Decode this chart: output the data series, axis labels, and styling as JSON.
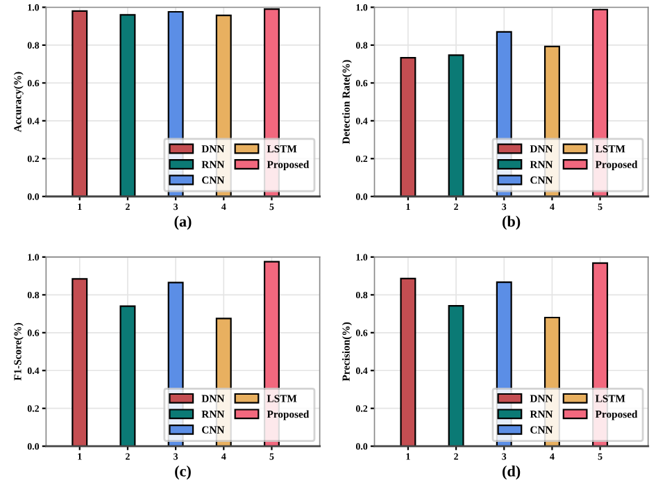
{
  "chart_data": [
    {
      "type": "bar",
      "xlabel": "(a)",
      "ylabel": "Accuracy(%)",
      "xlim": [
        0.3,
        6.0
      ],
      "xticks": [
        1,
        2,
        3,
        4,
        5
      ],
      "ylim": [
        0,
        1.0
      ],
      "yticks": [
        {
          "value": 0,
          "label": "0.0"
        },
        {
          "value": 0.2,
          "label": "0.2"
        },
        {
          "value": 0.4,
          "label": "0.4"
        },
        {
          "value": 0.6,
          "label": "0.6"
        },
        {
          "value": 0.8,
          "label": "0.8"
        },
        {
          "value": 1.0,
          "label": "1.0"
        }
      ],
      "grid": true,
      "legend": "bottom right",
      "series": [
        {
          "name": "DNN",
          "color": "#c44e52",
          "x": [
            1
          ],
          "values": [
            0.98
          ]
        },
        {
          "name": "RNN",
          "color": "#0b7a75",
          "x": [
            2
          ],
          "values": [
            0.96
          ]
        },
        {
          "name": "CNN",
          "color": "#5b8ee6",
          "x": [
            3
          ],
          "values": [
            0.976
          ]
        },
        {
          "name": "LSTM",
          "color": "#e8b060",
          "x": [
            4
          ],
          "values": [
            0.957
          ]
        },
        {
          "name": "Proposed",
          "color": "#f2687e",
          "x": [
            5
          ],
          "values": [
            0.99
          ]
        }
      ]
    },
    {
      "type": "bar",
      "xlabel": "(b)",
      "ylabel": "Detection Rate(%)",
      "xlim": [
        0.3,
        6.0
      ],
      "xticks": [
        1,
        2,
        3,
        4,
        5
      ],
      "ylim": [
        0,
        1.0
      ],
      "yticks": [
        {
          "value": 0,
          "label": "0.0"
        },
        {
          "value": 0.2,
          "label": "0.2"
        },
        {
          "value": 0.4,
          "label": "0.4"
        },
        {
          "value": 0.6,
          "label": "0.6"
        },
        {
          "value": 0.8,
          "label": "0.8"
        },
        {
          "value": 1.0,
          "label": "1.0"
        }
      ],
      "grid": true,
      "legend": "bottom right",
      "series": [
        {
          "name": "DNN",
          "color": "#c44e52",
          "x": [
            1
          ],
          "values": [
            0.733
          ]
        },
        {
          "name": "RNN",
          "color": "#0b7a75",
          "x": [
            2
          ],
          "values": [
            0.747
          ]
        },
        {
          "name": "CNN",
          "color": "#5b8ee6",
          "x": [
            3
          ],
          "values": [
            0.87
          ]
        },
        {
          "name": "LSTM",
          "color": "#e8b060",
          "x": [
            4
          ],
          "values": [
            0.793
          ]
        },
        {
          "name": "Proposed",
          "color": "#f2687e",
          "x": [
            5
          ],
          "values": [
            0.988
          ]
        }
      ]
    },
    {
      "type": "bar",
      "xlabel": "(c)",
      "ylabel": "F1-Score(%)",
      "xlim": [
        0.3,
        6.0
      ],
      "xticks": [
        1,
        2,
        3,
        4,
        5
      ],
      "ylim": [
        0,
        1.0
      ],
      "yticks": [
        {
          "value": 0,
          "label": "0.0"
        },
        {
          "value": 0.2,
          "label": "0.2"
        },
        {
          "value": 0.4,
          "label": "0.4"
        },
        {
          "value": 0.6,
          "label": "0.6"
        },
        {
          "value": 0.8,
          "label": "0.8"
        },
        {
          "value": 1.0,
          "label": "1.0"
        }
      ],
      "grid": true,
      "legend": "bottom right",
      "series": [
        {
          "name": "DNN",
          "color": "#c44e52",
          "x": [
            1
          ],
          "values": [
            0.884
          ]
        },
        {
          "name": "RNN",
          "color": "#0b7a75",
          "x": [
            2
          ],
          "values": [
            0.74
          ]
        },
        {
          "name": "CNN",
          "color": "#5b8ee6",
          "x": [
            3
          ],
          "values": [
            0.865
          ]
        },
        {
          "name": "LSTM",
          "color": "#e8b060",
          "x": [
            4
          ],
          "values": [
            0.675
          ]
        },
        {
          "name": "Proposed",
          "color": "#f2687e",
          "x": [
            5
          ],
          "values": [
            0.975
          ]
        }
      ]
    },
    {
      "type": "bar",
      "xlabel": "(d)",
      "ylabel": "Precision(%)",
      "xlim": [
        0.3,
        6.0
      ],
      "xticks": [
        1,
        2,
        3,
        4,
        5
      ],
      "ylim": [
        0,
        1.0
      ],
      "yticks": [
        {
          "value": 0,
          "label": "0.0"
        },
        {
          "value": 0.2,
          "label": "0.2"
        },
        {
          "value": 0.4,
          "label": "0.4"
        },
        {
          "value": 0.6,
          "label": "0.6"
        },
        {
          "value": 0.8,
          "label": "0.8"
        },
        {
          "value": 1.0,
          "label": "1.0"
        }
      ],
      "grid": true,
      "legend": "bottom right",
      "series": [
        {
          "name": "DNN",
          "color": "#c44e52",
          "x": [
            1
          ],
          "values": [
            0.886
          ]
        },
        {
          "name": "RNN",
          "color": "#0b7a75",
          "x": [
            2
          ],
          "values": [
            0.742
          ]
        },
        {
          "name": "CNN",
          "color": "#5b8ee6",
          "x": [
            3
          ],
          "values": [
            0.867
          ]
        },
        {
          "name": "LSTM",
          "color": "#e8b060",
          "x": [
            4
          ],
          "values": [
            0.68
          ]
        },
        {
          "name": "Proposed",
          "color": "#f2687e",
          "x": [
            5
          ],
          "values": [
            0.968
          ]
        }
      ]
    }
  ]
}
